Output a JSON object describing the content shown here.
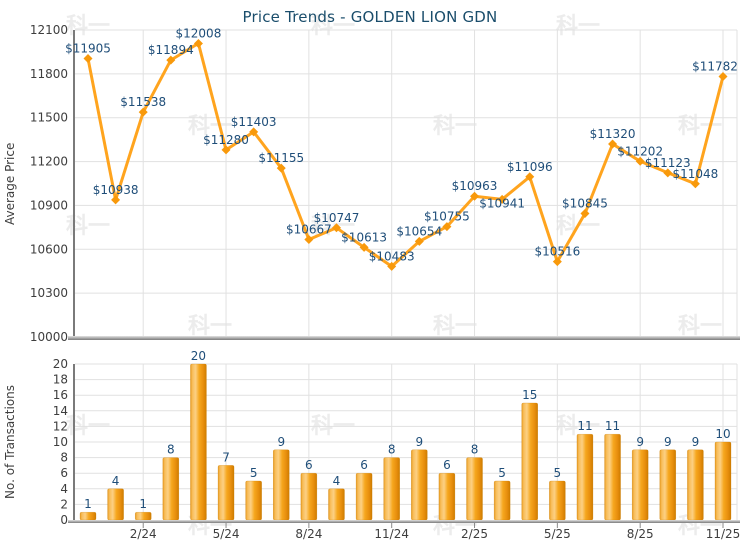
{
  "title": "Price Trends - GOLDEN LION GDN",
  "watermark_text": "科一",
  "colors": {
    "background": "#FFFFFF",
    "line": "#FFA41E",
    "marker": "#F8990B",
    "bar": "#F6A71E",
    "bar_light": "#FCD084",
    "bar_dark": "#CE7C00",
    "data_label": "#1F4E79",
    "title": "#1A4D6B",
    "tick_label": "#3E3E3E",
    "grid": "#E1E1E1",
    "axis": "#7A7A7A"
  },
  "chart_data": [
    {
      "type": "line",
      "title": "Price Trends - GOLDEN LION GDN",
      "ylabel": "Average Price",
      "xlabel": "",
      "label_prefix": "$",
      "values": [
        11905,
        10938,
        11538,
        11894,
        12008,
        11280,
        11403,
        11155,
        10667,
        10747,
        10613,
        10483,
        10654,
        10755,
        10963,
        10941,
        11096,
        10516,
        10845,
        11320,
        11202,
        11123,
        11048,
        11782
      ],
      "point_labels": [
        "$11905",
        "$10938",
        "$11538",
        "$11894",
        "$12008",
        "$11280",
        "$11403",
        "$11155",
        "$10667",
        "$10747",
        "$10613",
        "$10483",
        "$10654",
        "$10755",
        "$10963",
        "$10941",
        "$11096",
        "$10516",
        "$10845",
        "$11320",
        "$11202",
        "$11123",
        "$11048",
        "$11782"
      ],
      "yticks": [
        12100,
        11800,
        11500,
        11200,
        10900,
        10600,
        10300,
        10000
      ],
      "ylim": [
        10000,
        12100
      ],
      "grid": true,
      "legend": "none"
    },
    {
      "type": "bar",
      "title": "",
      "ylabel": "No. of Transactions",
      "xlabel": "",
      "values": [
        1,
        4,
        1,
        8,
        20,
        7,
        5,
        9,
        6,
        4,
        6,
        8,
        9,
        6,
        8,
        5,
        15,
        5,
        11,
        11,
        9,
        9,
        9,
        10
      ],
      "yticks": [
        20,
        18,
        16,
        14,
        12,
        10,
        8,
        6,
        4,
        2,
        0
      ],
      "ylim": [
        0,
        20
      ],
      "x_tick_labels": [
        "2/24",
        "5/24",
        "8/24",
        "11/24",
        "2/25",
        "5/25",
        "8/25",
        "11/25"
      ],
      "x_tick_indices": [
        2,
        5,
        8,
        11,
        14,
        17,
        20,
        23
      ],
      "grid": true,
      "legend": "none"
    }
  ]
}
